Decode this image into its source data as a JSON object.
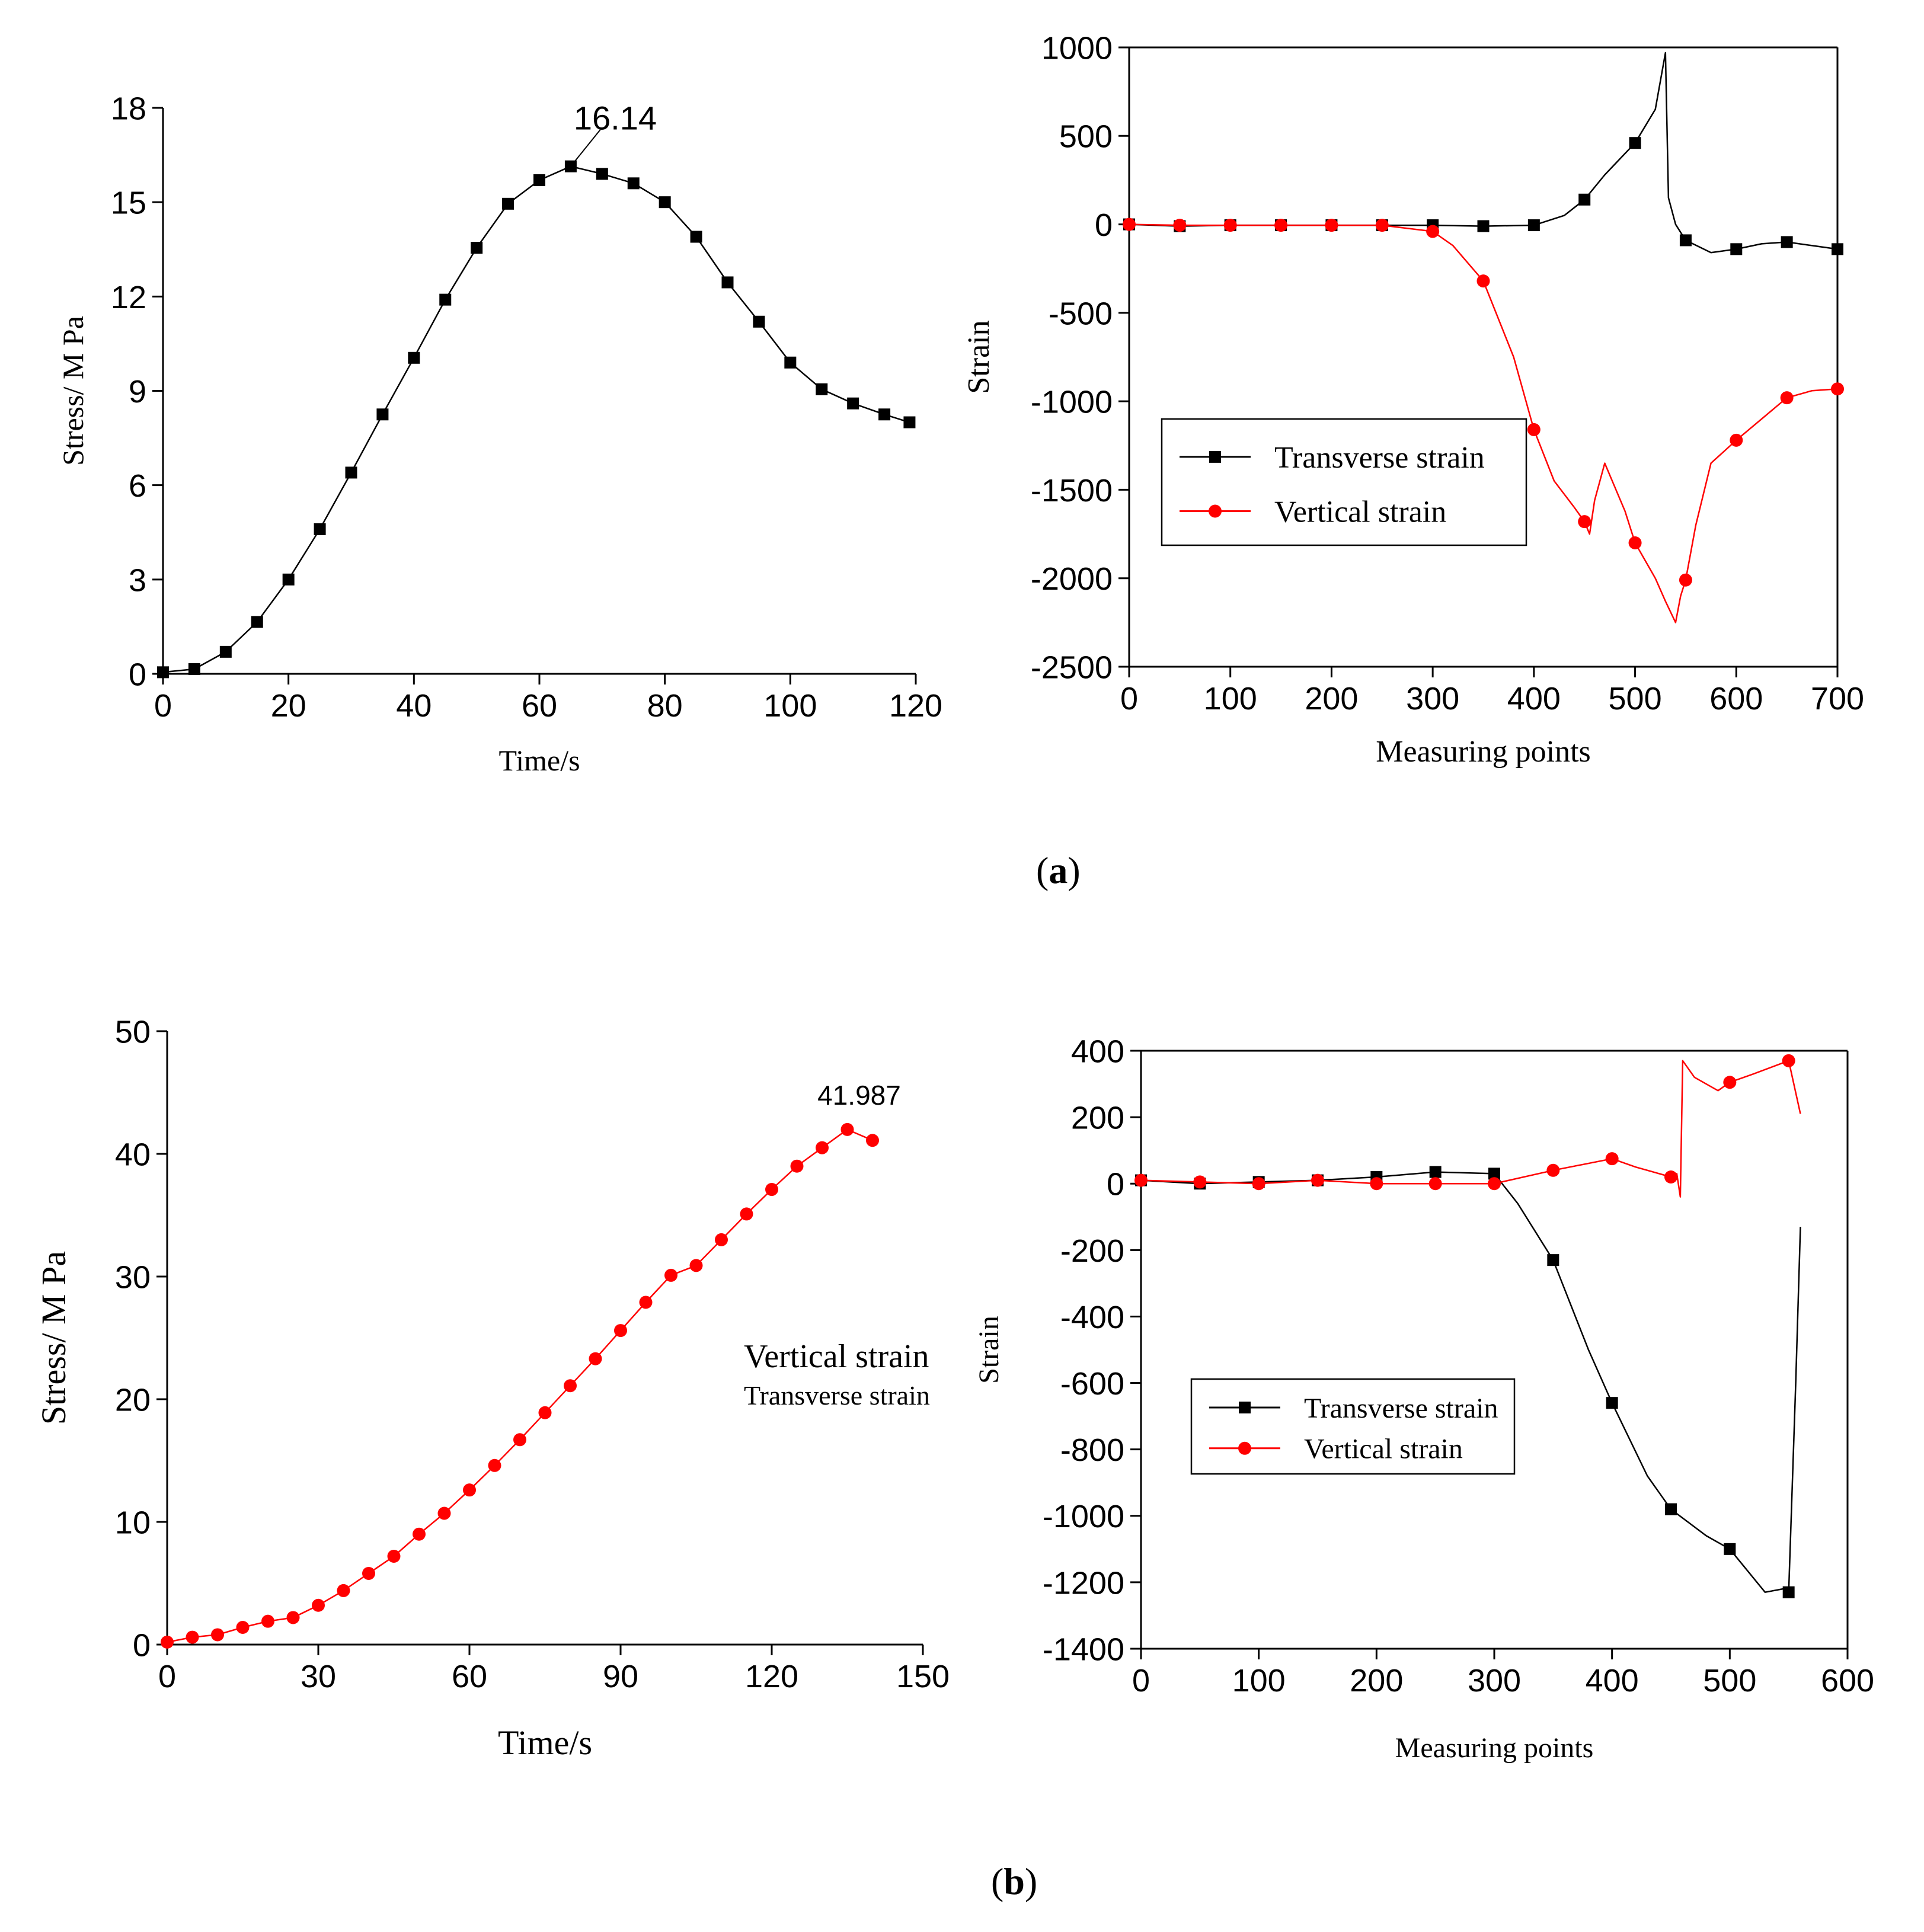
{
  "figure": {
    "caption_a": "a",
    "caption_b": "b"
  },
  "chart_data": [
    {
      "type": "line",
      "panel": "a-left",
      "xlabel": "Time/s",
      "ylabel": "Stress/ M Pa",
      "xlim": [
        0,
        120
      ],
      "ylim": [
        0,
        18
      ],
      "xticks": [
        0,
        20,
        40,
        60,
        80,
        100,
        120
      ],
      "yticks": [
        0,
        3,
        6,
        9,
        12,
        15,
        18
      ],
      "annotation": {
        "text": "16.14",
        "x": 65,
        "y": 16.14
      },
      "series": [
        {
          "color": "#000000",
          "marker": "square",
          "x": [
            0,
            5,
            10,
            15,
            20,
            25,
            30,
            35,
            40,
            45,
            50,
            55,
            60,
            65,
            70,
            75,
            80,
            85,
            90,
            95,
            100,
            105,
            110,
            115,
            119
          ],
          "y": [
            0.05,
            0.15,
            0.7,
            1.65,
            3.0,
            4.6,
            6.4,
            8.25,
            10.05,
            11.9,
            13.55,
            14.95,
            15.7,
            16.14,
            15.9,
            15.6,
            15.0,
            13.9,
            12.45,
            11.2,
            9.9,
            9.05,
            8.6,
            8.25,
            8.0
          ]
        }
      ]
    },
    {
      "type": "line",
      "panel": "a-right",
      "xlabel": "Measuring points",
      "ylabel": "Strain",
      "xlim": [
        0,
        700
      ],
      "ylim": [
        -2500,
        1000
      ],
      "xticks": [
        0,
        100,
        200,
        300,
        400,
        500,
        600,
        700
      ],
      "yticks": [
        -2500,
        -2000,
        -1500,
        -1000,
        -500,
        0,
        500,
        1000
      ],
      "legend": "center-left",
      "series": [
        {
          "name": "Transverse strain",
          "color": "#000000",
          "marker": "square",
          "x": [
            0,
            50,
            100,
            150,
            200,
            250,
            300,
            350,
            400,
            430,
            450,
            470,
            490,
            500,
            520,
            530,
            533,
            540,
            550,
            575,
            600,
            625,
            650,
            675,
            700
          ],
          "y": [
            0,
            -10,
            -5,
            -5,
            -5,
            -5,
            -5,
            -10,
            -5,
            50,
            140,
            280,
            400,
            460,
            650,
            970,
            150,
            0,
            -90,
            -160,
            -140,
            -110,
            -100,
            -120,
            -140
          ],
          "markers": [
            [
              0,
              0
            ],
            [
              50,
              -10
            ],
            [
              100,
              -5
            ],
            [
              150,
              -5
            ],
            [
              200,
              -5
            ],
            [
              250,
              -5
            ],
            [
              300,
              -5
            ],
            [
              350,
              -10
            ],
            [
              400,
              -5
            ],
            [
              450,
              140
            ],
            [
              500,
              460
            ],
            [
              550,
              -90
            ],
            [
              600,
              -140
            ],
            [
              650,
              -100
            ],
            [
              700,
              -140
            ]
          ]
        },
        {
          "name": "Vertical strain",
          "color": "#ff0000",
          "marker": "circle",
          "x": [
            0,
            50,
            100,
            150,
            200,
            250,
            300,
            320,
            350,
            380,
            400,
            420,
            440,
            450,
            455,
            460,
            470,
            490,
            500,
            520,
            530,
            540,
            545,
            550,
            560,
            575,
            600,
            625,
            650,
            675,
            700
          ],
          "y": [
            0,
            -5,
            -5,
            -5,
            -5,
            -5,
            -40,
            -120,
            -320,
            -750,
            -1160,
            -1450,
            -1600,
            -1680,
            -1750,
            -1560,
            -1350,
            -1620,
            -1800,
            -2000,
            -2130,
            -2250,
            -2100,
            -2010,
            -1700,
            -1350,
            -1220,
            -1100,
            -980,
            -940,
            -930
          ],
          "markers": [
            [
              0,
              0
            ],
            [
              50,
              -5
            ],
            [
              100,
              -5
            ],
            [
              150,
              -5
            ],
            [
              200,
              -5
            ],
            [
              250,
              -5
            ],
            [
              300,
              -40
            ],
            [
              350,
              -320
            ],
            [
              400,
              -1160
            ],
            [
              450,
              -1680
            ],
            [
              500,
              -1800
            ],
            [
              550,
              -2010
            ],
            [
              600,
              -1220
            ],
            [
              650,
              -980
            ],
            [
              700,
              -930
            ]
          ]
        }
      ],
      "legend_entries": [
        "Transverse strain",
        "Vertical strain"
      ]
    },
    {
      "type": "line",
      "panel": "b-left",
      "xlabel": "Time/s",
      "ylabel": "Stress/ M Pa",
      "xlim": [
        0,
        150
      ],
      "ylim": [
        0,
        50
      ],
      "xticks": [
        0,
        30,
        60,
        90,
        120,
        150
      ],
      "yticks": [
        0,
        10,
        20,
        30,
        40,
        50
      ],
      "annotation": {
        "text": "41.987",
        "x": 135,
        "y": 41.987
      },
      "floating_labels": [
        "Vertical strain",
        "Transverse strain"
      ],
      "series": [
        {
          "color": "#ff0000",
          "marker": "circle",
          "x": [
            0,
            5,
            10,
            15,
            20,
            25,
            30,
            35,
            40,
            45,
            50,
            55,
            60,
            65,
            70,
            75,
            80,
            85,
            90,
            95,
            100,
            105,
            110,
            115,
            120,
            125,
            130,
            135,
            140
          ],
          "y": [
            0.2,
            0.6,
            0.8,
            1.4,
            1.9,
            2.2,
            3.2,
            4.4,
            5.8,
            7.2,
            9.0,
            10.7,
            12.6,
            14.6,
            16.7,
            18.9,
            21.1,
            23.3,
            25.6,
            27.9,
            30.1,
            30.9,
            33.0,
            35.1,
            37.1,
            39.0,
            40.5,
            41.987,
            41.1
          ]
        }
      ]
    },
    {
      "type": "line",
      "panel": "b-right",
      "xlabel": "Measuring points",
      "ylabel": "Strain",
      "xlim": [
        0,
        600
      ],
      "ylim": [
        -1400,
        400
      ],
      "xticks": [
        0,
        100,
        200,
        300,
        400,
        500,
        600
      ],
      "yticks": [
        -1400,
        -1200,
        -1000,
        -800,
        -600,
        -400,
        -200,
        0,
        200,
        400
      ],
      "legend": "bottom-left",
      "series": [
        {
          "name": "Transverse strain",
          "color": "#000000",
          "marker": "square",
          "x": [
            0,
            50,
            100,
            150,
            200,
            250,
            300,
            320,
            350,
            380,
            400,
            430,
            450,
            480,
            500,
            530,
            545,
            550,
            556,
            560
          ],
          "y": [
            10,
            0,
            5,
            10,
            20,
            35,
            30,
            -60,
            -230,
            -500,
            -660,
            -880,
            -980,
            -1060,
            -1100,
            -1230,
            -1220,
            -1230,
            -600,
            -130
          ],
          "markers": [
            [
              0,
              10
            ],
            [
              50,
              0
            ],
            [
              100,
              5
            ],
            [
              150,
              10
            ],
            [
              200,
              20
            ],
            [
              250,
              35
            ],
            [
              300,
              30
            ],
            [
              350,
              -230
            ],
            [
              400,
              -660
            ],
            [
              450,
              -980
            ],
            [
              500,
              -1100
            ],
            [
              550,
              -1230
            ]
          ]
        },
        {
          "name": "Vertical strain",
          "color": "#ff0000",
          "marker": "circle",
          "x": [
            0,
            50,
            100,
            150,
            200,
            250,
            300,
            350,
            400,
            420,
            450,
            455,
            458,
            460,
            470,
            490,
            500,
            520,
            550,
            560
          ],
          "y": [
            10,
            5,
            0,
            10,
            0,
            0,
            0,
            40,
            75,
            50,
            20,
            30,
            -40,
            370,
            320,
            280,
            305,
            330,
            370,
            210
          ],
          "markers": [
            [
              0,
              10
            ],
            [
              50,
              5
            ],
            [
              100,
              0
            ],
            [
              150,
              10
            ],
            [
              200,
              0
            ],
            [
              250,
              0
            ],
            [
              300,
              0
            ],
            [
              350,
              40
            ],
            [
              400,
              75
            ],
            [
              450,
              20
            ],
            [
              500,
              305
            ],
            [
              550,
              370
            ]
          ]
        }
      ],
      "legend_entries": [
        "Transverse strain",
        "Vertical strain"
      ]
    }
  ]
}
